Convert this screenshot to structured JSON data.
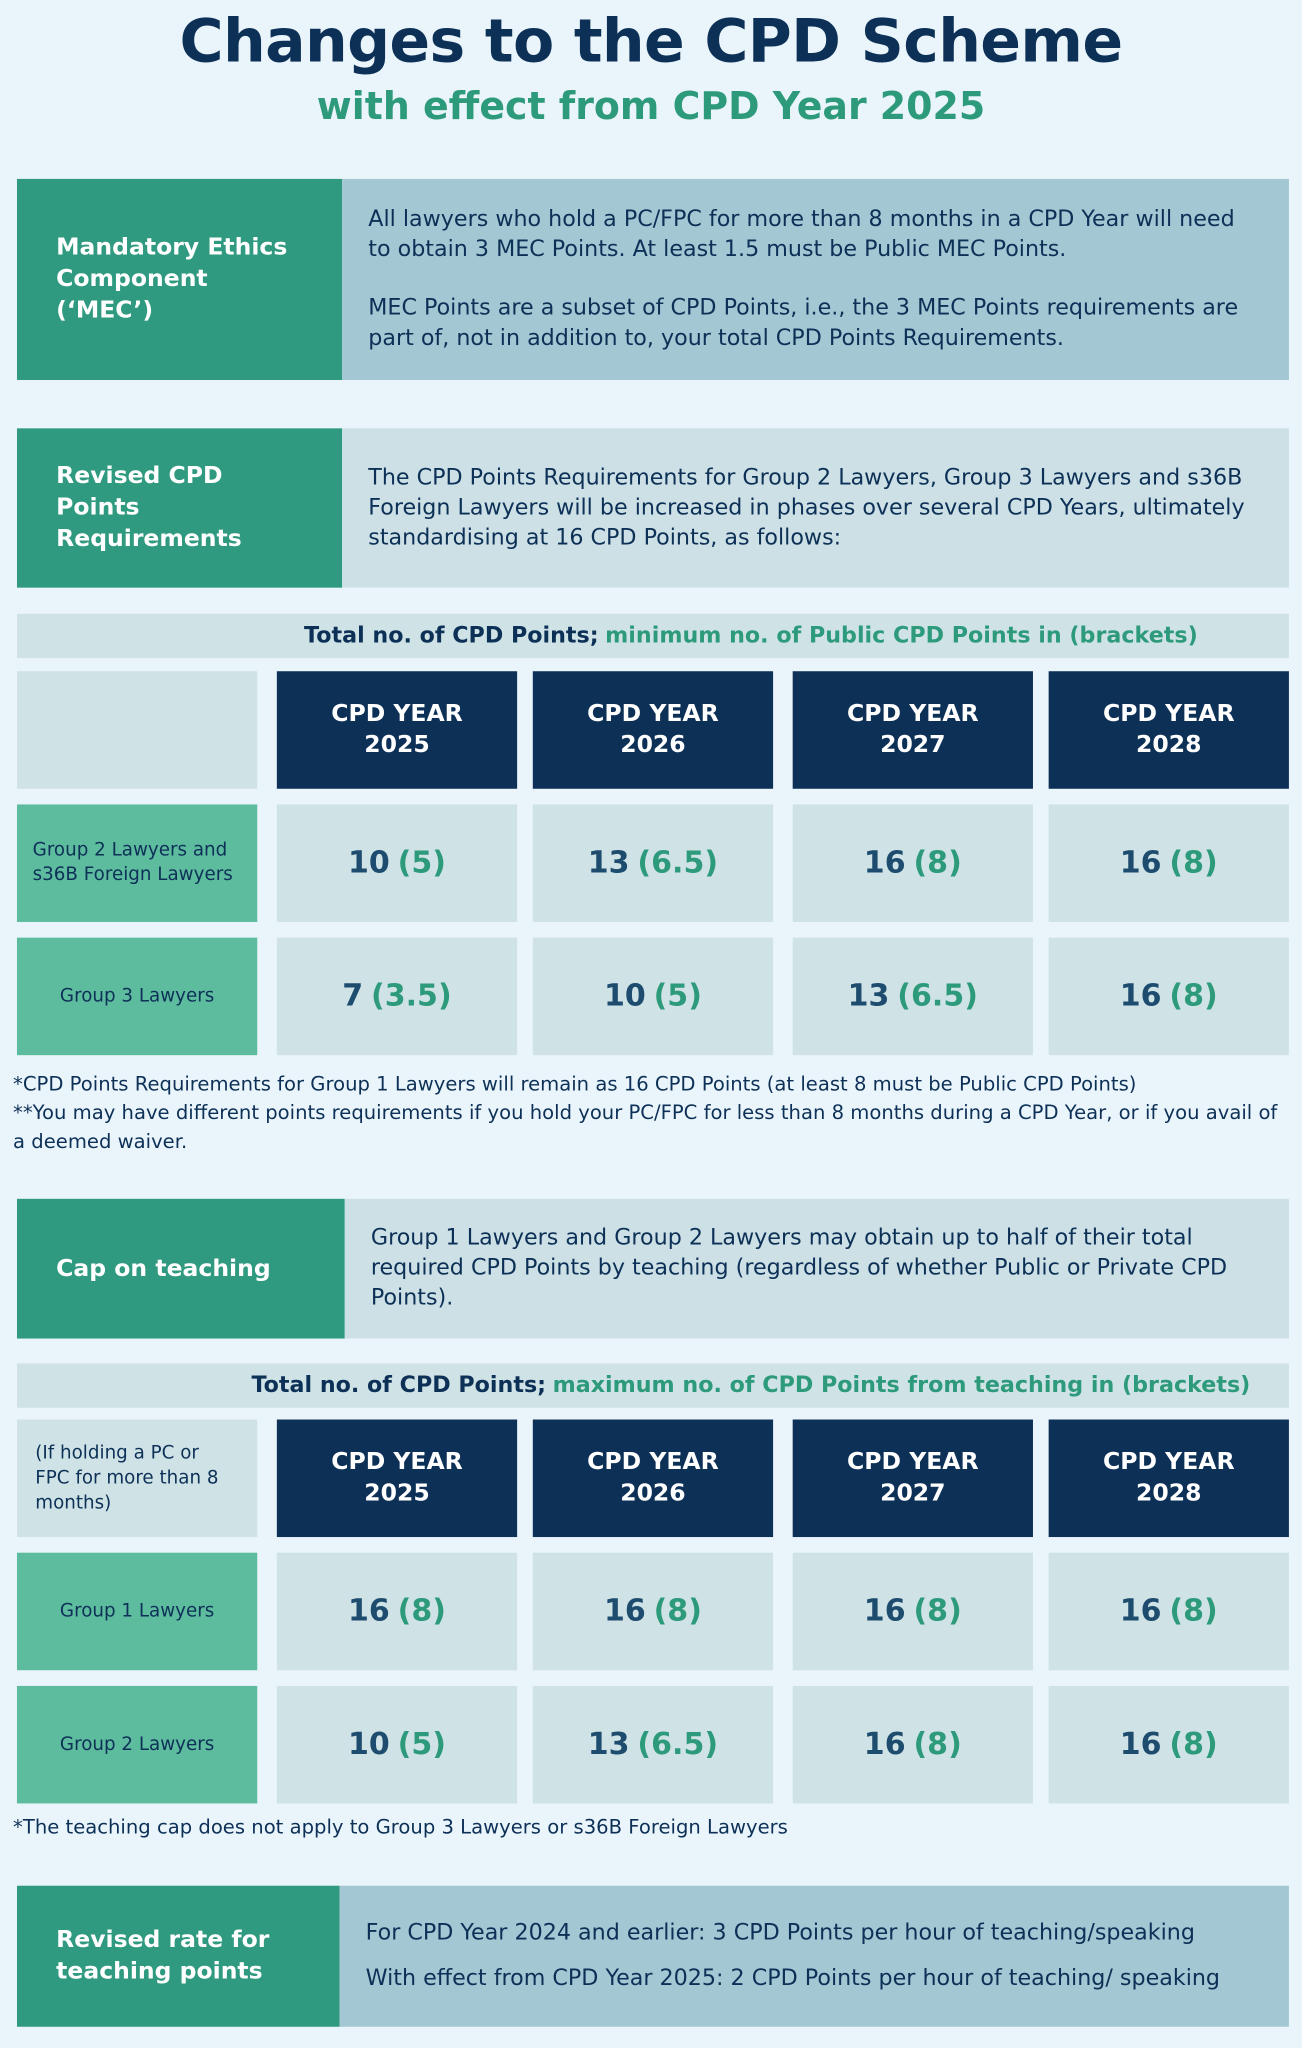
{
  "header": {
    "title": "Changes to the CPD Scheme",
    "subtitle": "with effect from CPD Year 2025"
  },
  "sections": [
    {
      "label": "Mandatory Ethics Component (‘MEC’)",
      "paragraphs": [
        "All lawyers who hold a PC/FPC for more than 8 months in a CPD Year will need to obtain 3 MEC Points. At least 1.5 must be Public MEC Points.",
        "MEC Points are a subset of CPD Points, i.e., the 3 MEC Points requirements are part of, not in addition to, your total CPD Points Requirements."
      ]
    },
    {
      "label": "Revised CPD Points Requirements",
      "paragraphs": [
        "The CPD Points Requirements for Group 2 Lawyers, Group 3 Lawyers and s36B Foreign Lawyers will be increased in phases over several CPD Years, ultimately standardising at 16 CPD Points, as follows:"
      ]
    },
    {
      "label": "Cap on teaching",
      "paragraphs": [
        "Group 1 Lawyers and Group 2 Lawyers may obtain up to half of their total required CPD Points by teaching (regardless of whether Public or Private CPD Points)."
      ]
    },
    {
      "label": "Revised rate for teaching points",
      "paragraphs": [
        "For CPD Year 2024 and earlier: 3 CPD Points per hour of teaching/speaking",
        "With effect from CPD Year 2025: 2 CPD Points per hour of teaching/ speaking"
      ]
    }
  ],
  "tables": [
    {
      "caption": {
        "lead": "Total no. of CPD Points;",
        "highlight": "minimum no. of Public CPD Points in (brackets)"
      },
      "columns": [
        "CPD YEAR 2025",
        "CPD YEAR 2026",
        "CPD YEAR 2027",
        "CPD YEAR 2028"
      ],
      "rows": [
        {
          "label": "Group 2 Lawyers and s36B Foreign Lawyers",
          "cells": [
            {
              "total": "10",
              "bracket": "(5)"
            },
            {
              "total": "13",
              "bracket": "(6.5)"
            },
            {
              "total": "16",
              "bracket": "(8)"
            },
            {
              "total": "16",
              "bracket": "(8)"
            }
          ]
        },
        {
          "label": "Group 3 Lawyers",
          "cells": [
            {
              "total": "7",
              "bracket": "(3.5)"
            },
            {
              "total": "10",
              "bracket": "(5)"
            },
            {
              "total": "13",
              "bracket": "(6.5)"
            },
            {
              "total": "16",
              "bracket": "(8)"
            }
          ]
        }
      ],
      "notes": [
        "*CPD Points Requirements for Group 1 Lawyers will remain as 16 CPD Points (at least 8 must be Public CPD Points)",
        "**You may have different points requirements if you hold your PC/FPC for less than 8 months during a CPD Year, or if you avail of a deemed waiver."
      ]
    },
    {
      "caption": {
        "lead": "Total no. of CPD Points;",
        "highlight": "maximum no. of CPD Points from teaching in (brackets)"
      },
      "corner": "(If holding a PC or FPC for more than 8 months)",
      "columns": [
        "CPD YEAR 2025",
        "CPD YEAR 2026",
        "CPD YEAR 2027",
        "CPD YEAR 2028"
      ],
      "rows": [
        {
          "label": "Group 1 Lawyers",
          "cells": [
            {
              "total": "16",
              "bracket": "(8)"
            },
            {
              "total": "16",
              "bracket": "(8)"
            },
            {
              "total": "16",
              "bracket": "(8)"
            },
            {
              "total": "16",
              "bracket": "(8)"
            }
          ]
        },
        {
          "label": "Group 2 Lawyers",
          "cells": [
            {
              "total": "10",
              "bracket": "(5)"
            },
            {
              "total": "13",
              "bracket": "(6.5)"
            },
            {
              "total": "16",
              "bracket": "(8)"
            },
            {
              "total": "16",
              "bracket": "(8)"
            }
          ]
        }
      ],
      "notes": [
        "*The teaching cap does not apply to Group 3 Lawyers or s36B Foreign Lawyers"
      ]
    }
  ]
}
